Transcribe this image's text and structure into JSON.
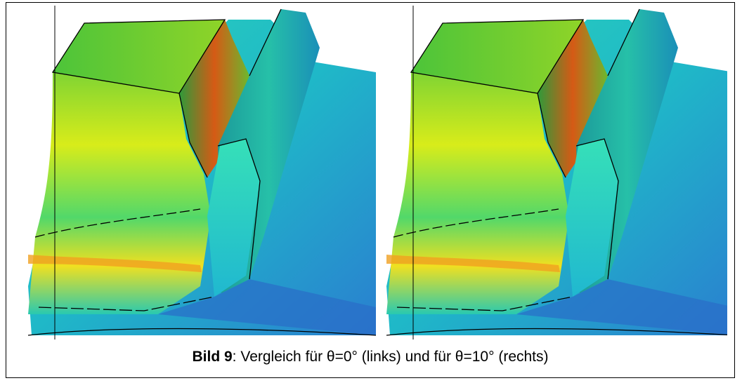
{
  "caption": {
    "label": "Bild 9",
    "text": ": Vergleich für θ=0° (links) und für θ=10° (rechts)"
  }
}
